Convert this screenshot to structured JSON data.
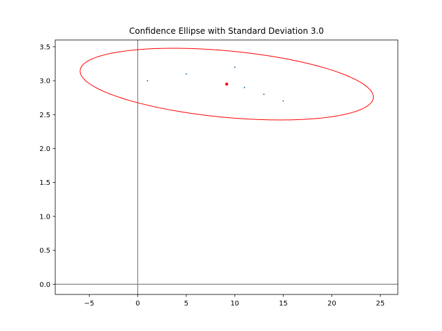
{
  "chart_data": {
    "type": "scatter",
    "title": "Confidence Ellipse with Standard Deviation 3.0",
    "xlabel": "",
    "ylabel": "",
    "xlim": [
      -8.5,
      26.8
    ],
    "ylim": [
      -0.15,
      3.6
    ],
    "x_ticks": [
      -5,
      0,
      5,
      10,
      15,
      20,
      25
    ],
    "x_tick_labels": [
      "−5",
      "0",
      "5",
      "10",
      "15",
      "20",
      "25"
    ],
    "y_ticks": [
      0.0,
      0.5,
      1.0,
      1.5,
      2.0,
      2.5,
      3.0,
      3.5
    ],
    "y_tick_labels": [
      "0.0",
      "0.5",
      "1.0",
      "1.5",
      "2.0",
      "2.5",
      "3.0",
      "3.5"
    ],
    "grid": false,
    "reference_lines": {
      "x": 0,
      "y": 0,
      "color": "#808080"
    },
    "points": {
      "color": "#1f77b4",
      "x": [
        1,
        5,
        10,
        11,
        13,
        15
      ],
      "y": [
        3.0,
        3.1,
        3.2,
        2.9,
        2.8,
        2.7
      ]
    },
    "mean_point": {
      "x": 9.17,
      "y": 2.95,
      "color": "#ff0000"
    },
    "ellipse": {
      "color": "#ff0000",
      "n_std": 3.0,
      "center": [
        9.17,
        2.95
      ],
      "cov": [
        [
          25.37,
          -0.3217
        ],
        [
          -0.3217,
          0.031
        ]
      ]
    }
  }
}
